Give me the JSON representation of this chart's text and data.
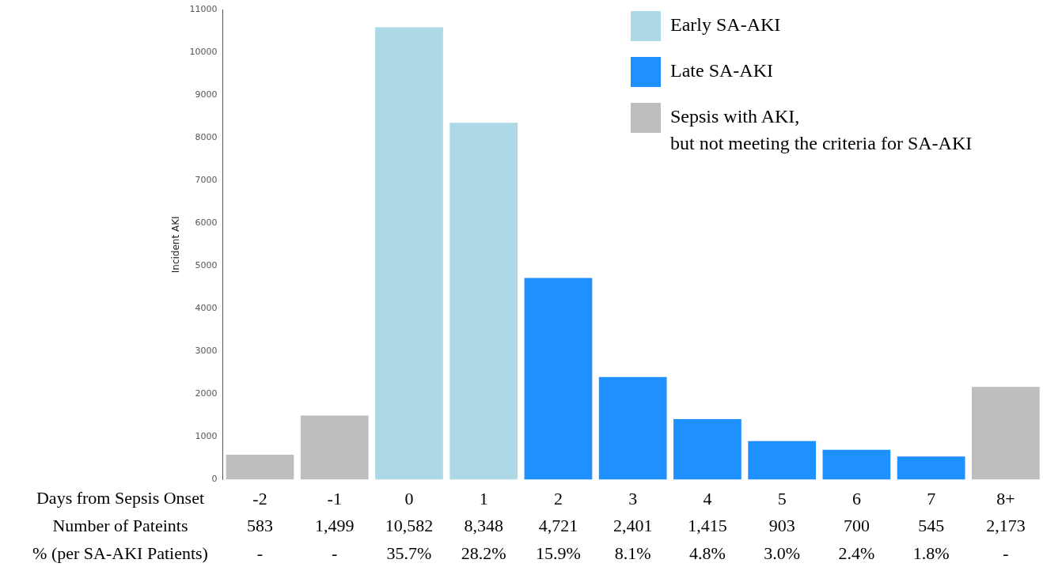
{
  "chart_data": {
    "type": "bar",
    "stacked": true,
    "xlabel": "Days from Sepsis Onset",
    "ylabel": "Incident AKI",
    "categories": [
      "-2",
      "-1",
      "0",
      "1",
      "2",
      "3",
      "4",
      "5",
      "6",
      "7",
      "8+"
    ],
    "series": [
      {
        "name": "Early SA-AKI",
        "color": "#add8e6",
        "values": [
          null,
          null,
          10582,
          8348,
          null,
          null,
          null,
          null,
          null,
          null,
          null
        ],
        "value_labels": [
          null,
          null,
          "10,582",
          "8,348",
          null,
          null,
          null,
          null,
          null,
          null,
          null
        ]
      },
      {
        "name": "Late SA-AKI",
        "color": "#1e90ff",
        "values": [
          null,
          null,
          null,
          null,
          4721,
          2401,
          1415,
          903,
          700,
          545,
          null
        ],
        "value_labels": [
          null,
          null,
          null,
          null,
          "4,721",
          "2,401",
          "1,415",
          "903",
          "700",
          "545",
          null
        ]
      },
      {
        "name": "Sepsis with AKI,\nbut not meeting the criteria for SA-AKI",
        "color": "#bebebe",
        "values": [
          583,
          1499,
          null,
          null,
          null,
          null,
          null,
          null,
          null,
          null,
          2173
        ],
        "value_labels": [
          "583",
          "1,499",
          null,
          null,
          null,
          null,
          null,
          null,
          null,
          null,
          "2,173"
        ]
      }
    ],
    "ylim": [
      0,
      11000
    ],
    "yticks": [
      0,
      1000,
      2000,
      3000,
      4000,
      5000,
      6000,
      7000,
      8000,
      9000,
      10000,
      11000
    ],
    "legend": "top right",
    "annotations": [
      "Number of Pateints",
      "% (per SA-AKI Patients)",
      "-",
      "-",
      "35.7%",
      "28.2%",
      "15.9%",
      "8.1%",
      "4.8%",
      "3.0%",
      "2.4%",
      "1.8%",
      "-"
    ]
  }
}
